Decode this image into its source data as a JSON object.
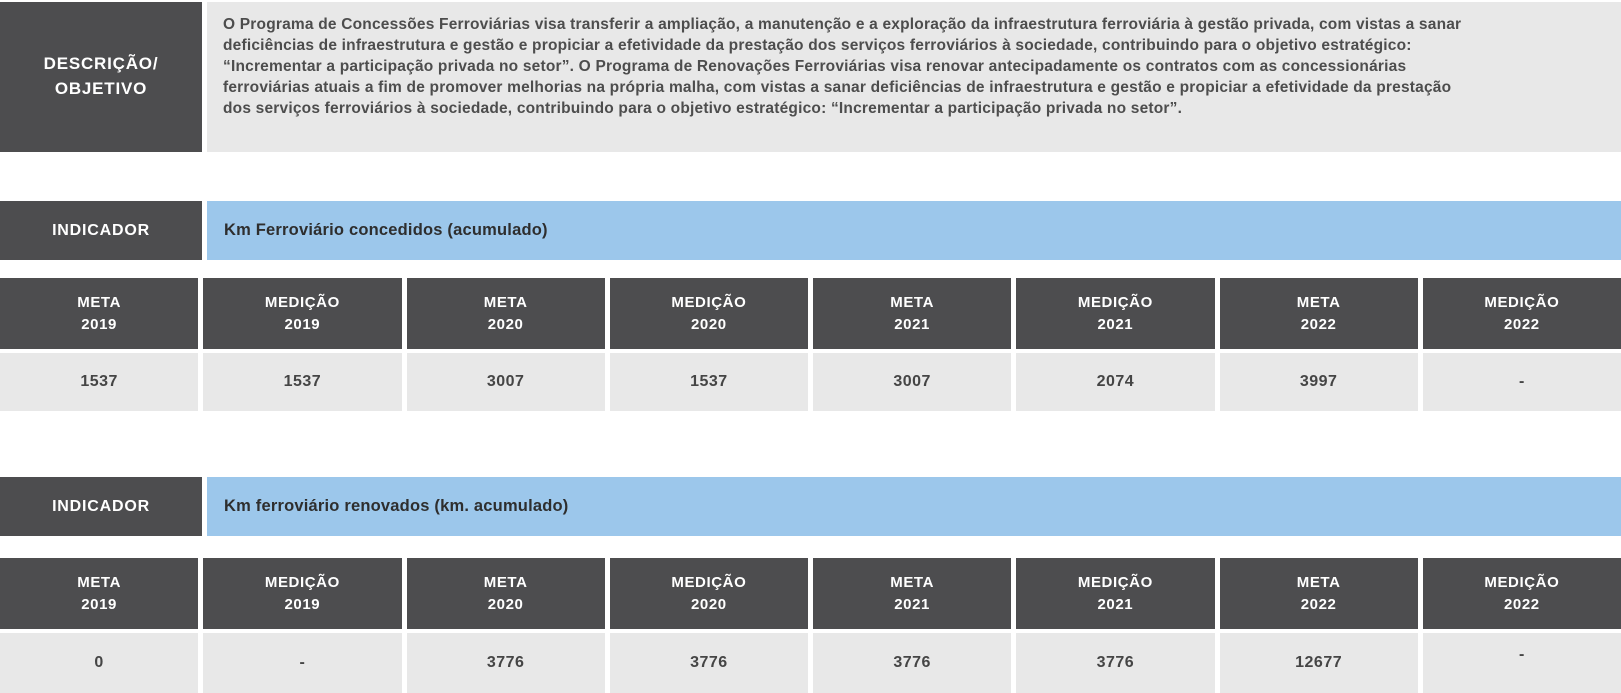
{
  "colors": {
    "dark_gray": "#4d4d4f",
    "light_gray": "#e8e8e8",
    "blue": "#9cc7eb",
    "text_dark": "#4d4d4d"
  },
  "description": {
    "label_line1": "DESCRIÇÃO/",
    "label_line2": "OBJETIVO",
    "text": "O Programa de Concessões Ferroviárias visa transferir a ampliação, a manutenção e a exploração da infraestrutura ferroviária à gestão privada, com vistas a sanar deficiências de infraestrutura e gestão e propiciar a efetividade da prestação dos serviços ferroviários à sociedade, contribuindo para o objetivo estratégico: “Incrementar a participação privada no setor”. O Programa de Renovações Ferroviárias visa renovar antecipadamente os contratos com as concessionárias ferroviárias atuais a fim de promover melhorias na própria malha, com vistas a sanar deficiências de infraestrutura e gestão e propiciar a efetividade da prestação dos serviços ferroviários à sociedade, contribuindo para o objetivo estratégico: “Incrementar a participação privada no setor”."
  },
  "tables": [
    {
      "indicator_label": "INDICADOR",
      "indicator_name": "Km Ferroviário concedidos (acumulado)",
      "headers": [
        {
          "metric": "META",
          "year": "2019"
        },
        {
          "metric": "MEDIÇÃO",
          "year": "2019"
        },
        {
          "metric": "META",
          "year": "2020"
        },
        {
          "metric": "MEDIÇÃO",
          "year": "2020"
        },
        {
          "metric": "META",
          "year": "2021"
        },
        {
          "metric": "MEDIÇÃO",
          "year": "2021"
        },
        {
          "metric": "META",
          "year": "2022"
        },
        {
          "metric": "MEDIÇÃO",
          "year": "2022"
        }
      ],
      "values": [
        "1537",
        "1537",
        "3007",
        "1537",
        "3007",
        "2074",
        "3997",
        "-"
      ]
    },
    {
      "indicator_label": "INDICADOR",
      "indicator_name": "Km ferroviário renovados (km. acumulado)",
      "headers": [
        {
          "metric": "META",
          "year": "2019"
        },
        {
          "metric": "MEDIÇÃO",
          "year": "2019"
        },
        {
          "metric": "META",
          "year": "2020"
        },
        {
          "metric": "MEDIÇÃO",
          "year": "2020"
        },
        {
          "metric": "META",
          "year": "2021"
        },
        {
          "metric": "MEDIÇÃO",
          "year": "2021"
        },
        {
          "metric": "META",
          "year": "2022"
        },
        {
          "metric": "MEDIÇÃO",
          "year": "2022"
        }
      ],
      "values": [
        "0",
        "-",
        "3776",
        "3776",
        "3776",
        "3776",
        "12677",
        "-"
      ]
    }
  ]
}
